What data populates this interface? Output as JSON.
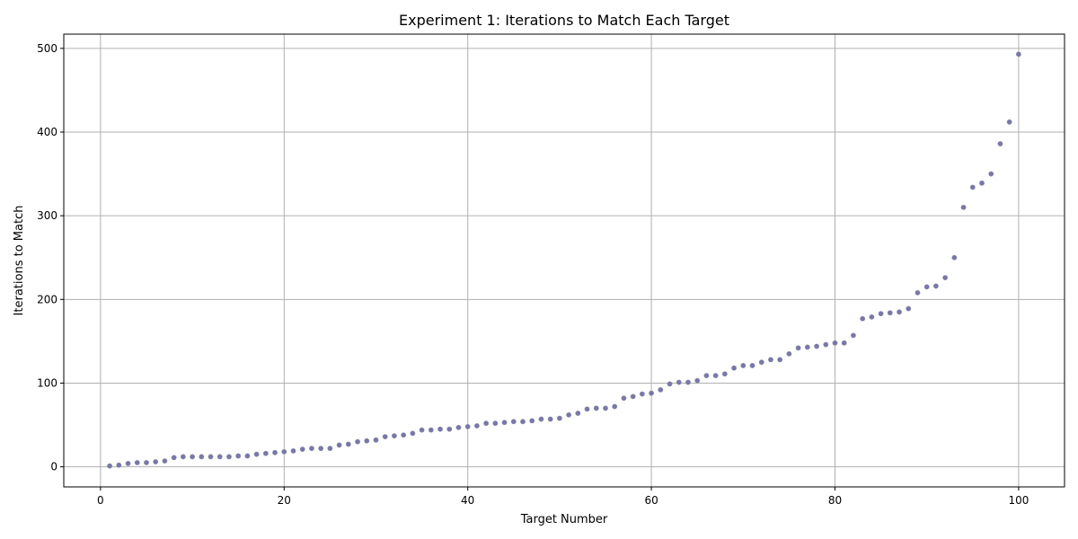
{
  "chart_data": {
    "type": "scatter",
    "title": "Experiment 1: Iterations to Match Each Target",
    "xlabel": "Target Number",
    "ylabel": "Iterations to Match",
    "xlim": [
      -4,
      105
    ],
    "ylim": [
      -24,
      517
    ],
    "xticks": [
      0,
      20,
      40,
      60,
      80,
      100
    ],
    "yticks": [
      0,
      100,
      200,
      300,
      400,
      500
    ],
    "grid": true,
    "marker_color": "#7777a8",
    "series": [
      {
        "x": [
          1,
          2,
          3,
          4,
          5,
          6,
          7,
          8,
          9,
          10,
          11,
          12,
          13,
          14,
          15,
          16,
          17,
          18,
          19,
          20,
          21,
          22,
          23,
          24,
          25,
          26,
          27,
          28,
          29,
          30,
          31,
          32,
          33,
          34,
          35,
          36,
          37,
          38,
          39,
          40,
          41,
          42,
          43,
          44,
          45,
          46,
          47,
          48,
          49,
          50,
          51,
          52,
          53,
          54,
          55,
          56,
          57,
          58,
          59,
          60,
          61,
          62,
          63,
          64,
          65,
          66,
          67,
          68,
          69,
          70,
          71,
          72,
          73,
          74,
          75,
          76,
          77,
          78,
          79,
          80,
          81,
          82,
          83,
          84,
          85,
          86,
          87,
          88,
          89,
          90,
          91,
          92,
          93,
          94,
          95,
          96,
          97,
          98,
          99,
          100
        ],
        "y": [
          1,
          2,
          4,
          5,
          5,
          6,
          7,
          11,
          12,
          12,
          12,
          12,
          12,
          12,
          13,
          13,
          15,
          16,
          17,
          18,
          19,
          21,
          22,
          22,
          22,
          26,
          27,
          30,
          31,
          32,
          36,
          37,
          38,
          40,
          44,
          44,
          45,
          45,
          47,
          48,
          49,
          52,
          52,
          53,
          54,
          54,
          55,
          57,
          57,
          58,
          62,
          64,
          69,
          70,
          70,
          72,
          82,
          84,
          87,
          88,
          92,
          99,
          101,
          101,
          103,
          109,
          109,
          111,
          118,
          121,
          121,
          125,
          128,
          128,
          135,
          142,
          143,
          144,
          146,
          148,
          148,
          157,
          177,
          179,
          183,
          184,
          185,
          189,
          208,
          215,
          216,
          226,
          250,
          310,
          334,
          339,
          350,
          386,
          412,
          493
        ]
      }
    ]
  }
}
